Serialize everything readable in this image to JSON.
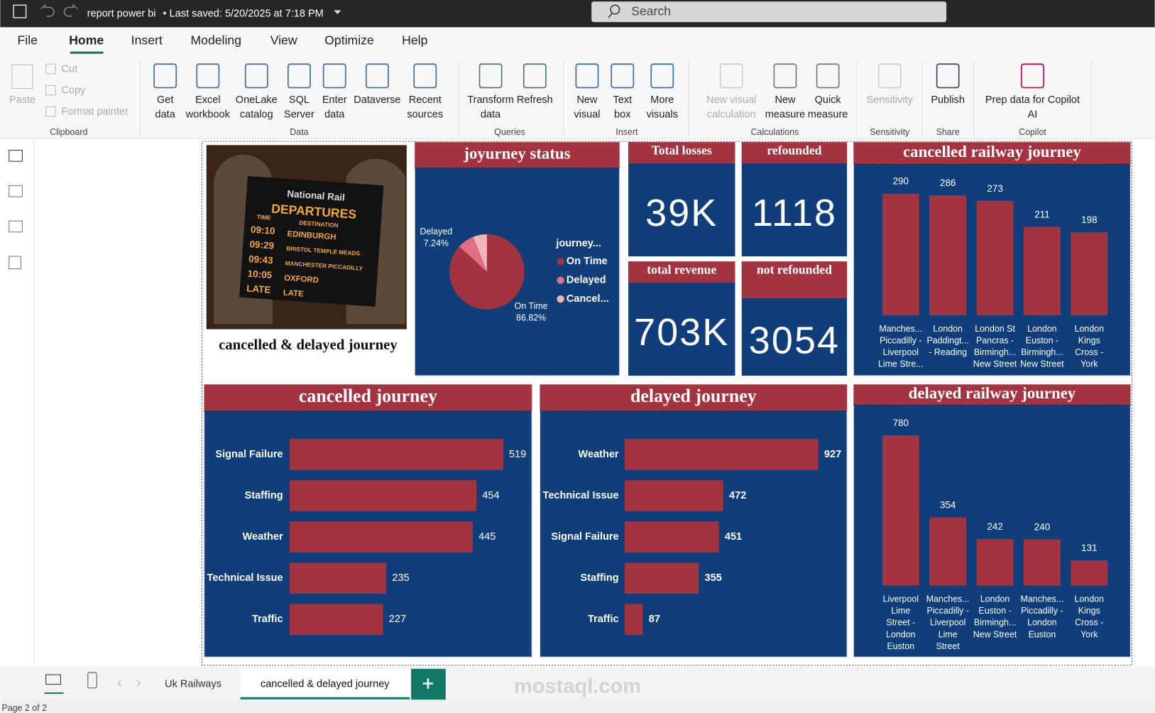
{
  "titlebar": {
    "file": "report power bi",
    "saved": "• Last saved: 5/20/2025 at 7:18 PM",
    "search": "Search"
  },
  "menu": [
    "File",
    "Home",
    "Insert",
    "Modeling",
    "View",
    "Optimize",
    "Help"
  ],
  "ribbon": {
    "clipboard": {
      "paste": "Paste",
      "cut": "Cut",
      "copy": "Copy",
      "format_painter": "Format painter",
      "group": "Clipboard"
    },
    "groups": [
      {
        "name": "Data",
        "buttons": [
          [
            "Get",
            "data"
          ],
          [
            "Excel",
            "workbook"
          ],
          [
            "OneLake",
            "catalog"
          ],
          [
            "SQL",
            "Server"
          ],
          [
            "Enter",
            "data"
          ],
          [
            "Dataverse"
          ],
          [
            "Recent",
            "sources"
          ]
        ]
      },
      {
        "name": "Queries",
        "buttons": [
          [
            "Transform",
            "data"
          ],
          [
            "Refresh"
          ]
        ]
      },
      {
        "name": "Insert",
        "buttons": [
          [
            "New",
            "visual"
          ],
          [
            "Text",
            "box"
          ],
          [
            "More",
            "visuals"
          ]
        ]
      },
      {
        "name": "Calculations",
        "buttons": [
          [
            "New visual",
            "calculation"
          ],
          [
            "New",
            "measure"
          ],
          [
            "Quick",
            "measure"
          ]
        ]
      },
      {
        "name": "Sensitivity",
        "buttons": [
          [
            "Sensitivity"
          ]
        ]
      },
      {
        "name": "Share",
        "buttons": [
          [
            "Publish"
          ]
        ]
      },
      {
        "name": "Copilot",
        "buttons": [
          [
            "Prep data for Copilot",
            "AI"
          ]
        ]
      }
    ]
  },
  "report": {
    "board": {
      "brand": "National Rail",
      "heading": "DEPARTURES",
      "col_time": "TIME",
      "col_dest": "DESTINATION",
      "rows": [
        [
          "09:10",
          "EDINBURGH"
        ],
        [
          "09:29",
          "BRISTOL TEMPLE MEADS"
        ],
        [
          "09:43",
          "MANCHESTER PICCADILLY"
        ],
        [
          "10:05",
          "OXFORD"
        ],
        [
          "LATE",
          "LATE"
        ]
      ]
    },
    "image_title": "cancelled & delayed journey",
    "cards": [
      {
        "title": "Total losses",
        "value": "39K"
      },
      {
        "title": "refounded",
        "value": "1118"
      },
      {
        "title": "total revenue",
        "value": "703K"
      },
      {
        "title": "not refounded",
        "value": "3054"
      }
    ]
  },
  "chart_data": [
    {
      "type": "pie",
      "title": "joyurney status",
      "legend_title": "journey...",
      "categories": [
        "On Time",
        "Delayed",
        "Cancel..."
      ],
      "values": [
        86.82,
        7.24,
        5.94
      ],
      "value_labels": [
        "86.82%",
        "7.24%",
        null
      ],
      "colors": [
        "#a3333e",
        "#e06f80",
        "#f2b3bc"
      ]
    },
    {
      "type": "bar",
      "orientation": "vertical",
      "title": "cancelled railway journey",
      "categories": [
        [
          "Manches...",
          "Piccadilly -",
          "Liverpool",
          "Lime Stre..."
        ],
        [
          "London",
          "Paddingt...",
          "- Reading"
        ],
        [
          "London St",
          "Pancras -",
          "Birmingh...",
          "New Street"
        ],
        [
          "London",
          "Euston -",
          "Birmingh...",
          "New Street"
        ],
        [
          "London",
          "Kings",
          "Cross -",
          "York"
        ]
      ],
      "values": [
        290,
        286,
        273,
        211,
        198
      ],
      "color": "#a3333e"
    },
    {
      "type": "bar",
      "orientation": "horizontal",
      "title": "cancelled journey",
      "categories": [
        "Signal Failure",
        "Staffing",
        "Weather",
        "Technical Issue",
        "Traffic"
      ],
      "values": [
        519,
        454,
        445,
        235,
        227
      ],
      "color": "#a3333e"
    },
    {
      "type": "bar",
      "orientation": "horizontal",
      "title": "delayed journey",
      "categories": [
        "Weather",
        "Technical Issue",
        "Signal Failure",
        "Staffing",
        "Traffic"
      ],
      "values": [
        927,
        472,
        451,
        355,
        87
      ],
      "color": "#a3333e"
    },
    {
      "type": "bar",
      "orientation": "vertical",
      "title": "delayed railway journey",
      "categories": [
        [
          "Liverpool",
          "Lime",
          "Street -",
          "London",
          "Euston"
        ],
        [
          "Manches...",
          "Piccadilly -",
          "Liverpool",
          "Lime",
          "Street"
        ],
        [
          "London",
          "Euston -",
          "Birmingh...",
          "New Street"
        ],
        [
          "Manches...",
          "Piccadilly -",
          "London",
          "Euston"
        ],
        [
          "London",
          "Kings",
          "Cross -",
          "York"
        ]
      ],
      "values": [
        780,
        354,
        242,
        240,
        131
      ],
      "color": "#a3333e"
    }
  ],
  "tabs": [
    "Uk Railways",
    "cancelled & delayed journey"
  ],
  "status": "Page 2 of 2",
  "watermark": "mostaql.com"
}
